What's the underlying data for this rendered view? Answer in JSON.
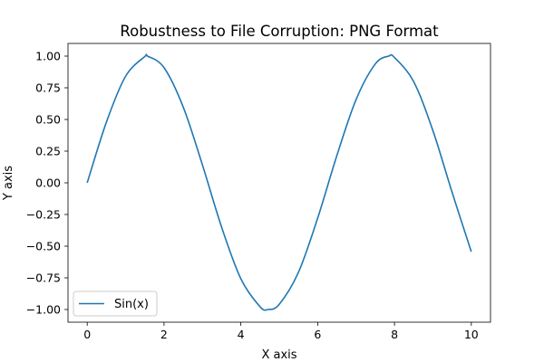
{
  "chart_data": {
    "type": "line",
    "title": "Robustness to File Corruption: PNG Format",
    "xlabel": "X axis",
    "ylabel": "Y axis",
    "xlim": [
      -0.5,
      10.5
    ],
    "ylim": [
      -1.1,
      1.1
    ],
    "xticks": [
      0,
      2,
      4,
      6,
      8,
      10
    ],
    "xtick_labels": [
      "0",
      "2",
      "4",
      "6",
      "8",
      "10"
    ],
    "yticks": [
      -1.0,
      -0.75,
      -0.5,
      -0.25,
      0.0,
      0.25,
      0.5,
      0.75,
      1.0
    ],
    "ytick_labels": [
      "−1.00",
      "−0.75",
      "−0.50",
      "−0.25",
      "0.00",
      "0.25",
      "0.50",
      "0.75",
      "1.00"
    ],
    "grid": false,
    "legend_position": "lower-left",
    "series": [
      {
        "name": "Sin(x)",
        "color": "#1f77b4",
        "x": [
          0,
          0.5,
          1.0,
          1.5,
          1.57,
          2.0,
          2.5,
          3.0,
          3.5,
          4.0,
          4.5,
          4.71,
          5.0,
          5.5,
          6.0,
          6.5,
          7.0,
          7.5,
          7.85,
          8.0,
          8.5,
          9.0,
          9.5,
          10.0
        ],
        "y": [
          0.0,
          0.479,
          0.841,
          0.997,
          1.0,
          0.909,
          0.598,
          0.141,
          -0.351,
          -0.757,
          -0.978,
          -1.0,
          -0.959,
          -0.706,
          -0.279,
          0.215,
          0.657,
          0.938,
          1.0,
          0.989,
          0.798,
          0.412,
          -0.075,
          -0.544
        ]
      }
    ]
  }
}
